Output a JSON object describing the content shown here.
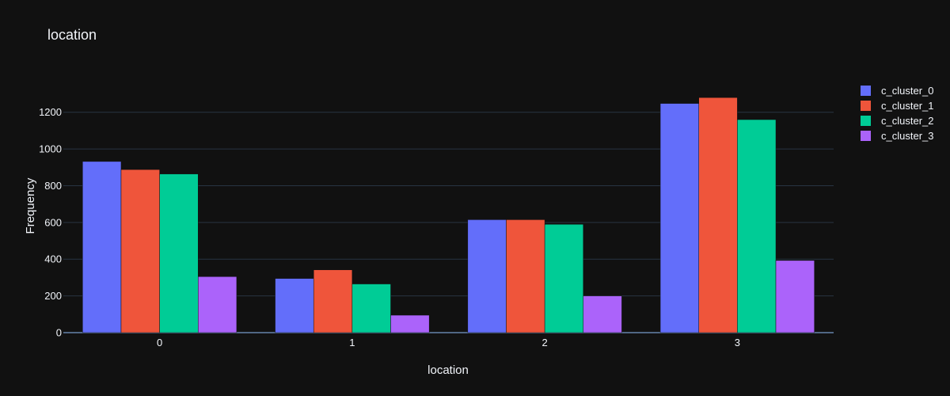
{
  "chart_data": {
    "type": "bar",
    "title": "location",
    "xlabel": "location",
    "ylabel": "Frequency",
    "categories": [
      "0",
      "1",
      "2",
      "3"
    ],
    "y_ticks": [
      0,
      200,
      400,
      600,
      800,
      1000,
      1200
    ],
    "ylim": [
      0,
      1380
    ],
    "grid": true,
    "legend_position": "right",
    "series": [
      {
        "name": "c_cluster_0",
        "color": "#636efa",
        "values": [
          932,
          295,
          615,
          1248
        ]
      },
      {
        "name": "c_cluster_1",
        "color": "#ef553b",
        "values": [
          888,
          342,
          615,
          1280
        ]
      },
      {
        "name": "c_cluster_2",
        "color": "#00cc96",
        "values": [
          864,
          265,
          590,
          1160
        ]
      },
      {
        "name": "c_cluster_3",
        "color": "#ab63fa",
        "values": [
          305,
          95,
          200,
          393
        ]
      }
    ]
  }
}
